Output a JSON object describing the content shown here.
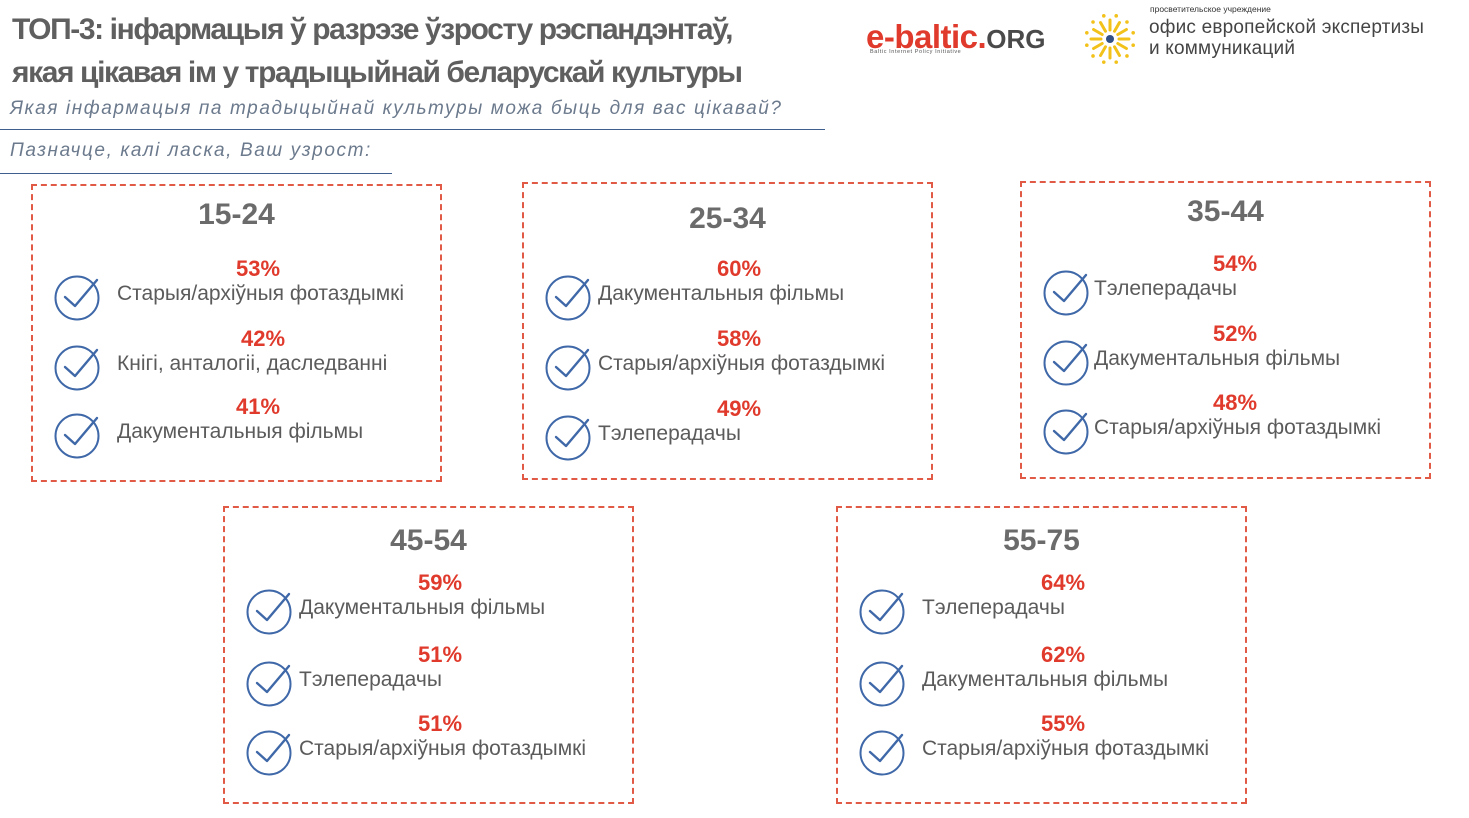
{
  "header": {
    "title_line1": "ТОП-3: інфармацыя ў разрэзе ўзросту рэспандэнтаў,",
    "title_line2": "якая цікавая ім у традыцыйнай беларускай культуры",
    "question1": "Якая інфармацыя па традыцыйнай культуры можа быць для вас цікавай?",
    "question2": "Пазначце, калі ласка, Ваш узрост:"
  },
  "logos": {
    "ebaltic_main": "e-baltic",
    "ebaltic_dot": ".",
    "ebaltic_org": "ORG",
    "ebaltic_sub": "Baltic Internet Policy Initiative",
    "ofis_small": "просветительское учреждение",
    "ofis_line1": "офис европейской экспертизы",
    "ofis_line2": "и коммуникаций"
  },
  "colors": {
    "accent_red": "#e03a2c",
    "check_blue": "#3f68a8",
    "border_dash": "#e05a45"
  },
  "groups": [
    {
      "age": "15-24",
      "items": [
        {
          "pct": "53%",
          "label": "Старыя/архіўныя фотаздымкі",
          "icon": "check-circle-icon"
        },
        {
          "pct": "42%",
          "label": "Кнігі, анталогіі, даследванні",
          "icon": "check-circle-icon"
        },
        {
          "pct": "41%",
          "label": "Дакументальныя фільмы",
          "icon": "check-circle-icon"
        }
      ]
    },
    {
      "age": "25-34",
      "items": [
        {
          "pct": "60%",
          "label": "Дакументальныя фільмы",
          "icon": "check-circle-icon"
        },
        {
          "pct": "58%",
          "label": "Старыя/архіўныя фотаздымкі",
          "icon": "check-circle-icon"
        },
        {
          "pct": "49%",
          "label": "Тэлеперадачы",
          "icon": "check-circle-icon"
        }
      ]
    },
    {
      "age": "35-44",
      "items": [
        {
          "pct": "54%",
          "label": "Тэлеперадачы",
          "icon": "check-circle-icon"
        },
        {
          "pct": "52%",
          "label": "Дакументальныя фільмы",
          "icon": "check-circle-icon"
        },
        {
          "pct": "48%",
          "label": "Старыя/архіўныя фотаздымкі",
          "icon": "check-circle-icon"
        }
      ]
    },
    {
      "age": "45-54",
      "items": [
        {
          "pct": "59%",
          "label": "Дакументальныя фільмы",
          "icon": "check-circle-icon"
        },
        {
          "pct": "51%",
          "label": "Тэлеперадачы",
          "icon": "check-circle-icon"
        },
        {
          "pct": "51%",
          "label": "Старыя/архіўныя фотаздымкі",
          "icon": "check-circle-icon"
        }
      ]
    },
    {
      "age": "55-75",
      "items": [
        {
          "pct": "64%",
          "label": "Тэлеперадачы",
          "icon": "check-circle-icon"
        },
        {
          "pct": "62%",
          "label": "Дакументальныя фільмы",
          "icon": "check-circle-icon"
        },
        {
          "pct": "55%",
          "label": "Старыя/архіўныя фотаздымкі",
          "icon": "check-circle-icon"
        }
      ]
    }
  ]
}
